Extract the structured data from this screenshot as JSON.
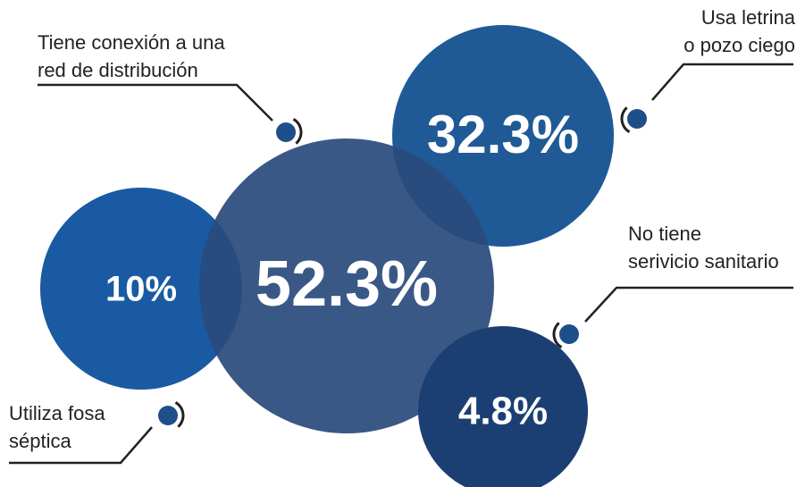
{
  "chart_data": {
    "type": "bubble",
    "categories": [
      "Tiene conexión a una\nred de distribución",
      "Usa letrina\no pozo ciego",
      "No tiene\nserivicio sanitario",
      "Utiliza fosa\nséptica"
    ],
    "values": [
      52.3,
      32.3,
      4.8,
      10
    ],
    "value_labels": [
      "52.3%",
      "32.3%",
      "4.8%",
      "10%"
    ],
    "colors": [
      "#2a4b7d",
      "#1f5a96",
      "#1b3f72",
      "#1a5aa2"
    ]
  }
}
